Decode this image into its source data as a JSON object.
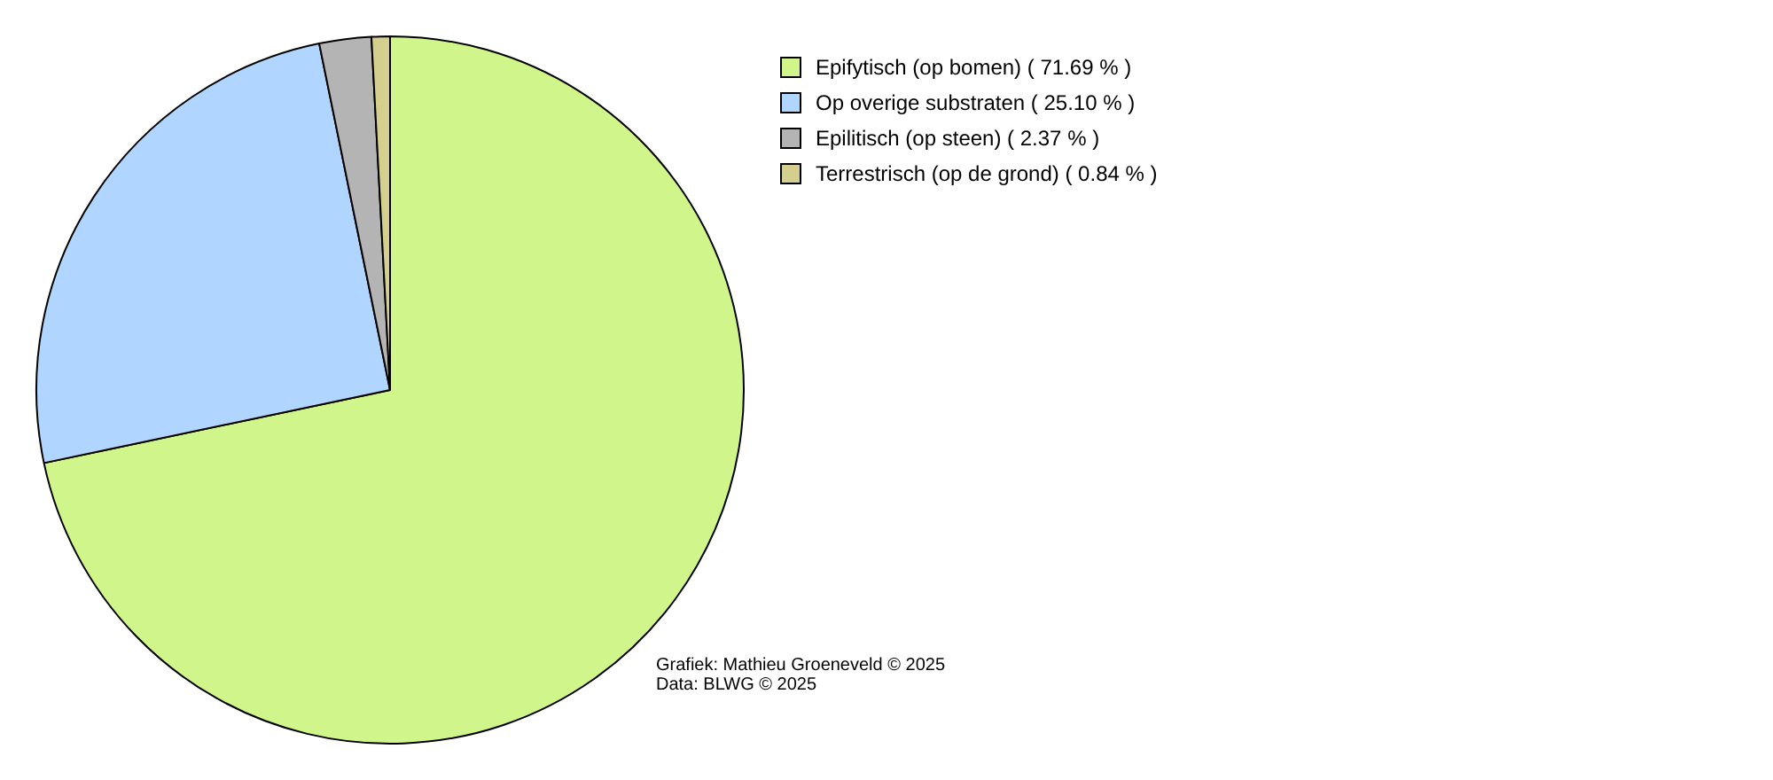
{
  "chart_data": {
    "type": "pie",
    "categories": [
      "Epifytisch (op bomen) ( 71.69 % )",
      "Op overige substraten ( 25.10 % )",
      "Epilitisch (op steen) ( 2.37 % )",
      "Terrestrisch (op de grond) ( 0.84 % )"
    ],
    "values": [
      71.69,
      25.1,
      2.37,
      0.84
    ],
    "colors": [
      "#d0f58a",
      "#b0d5ff",
      "#b4b4b4",
      "#d4cf8f"
    ],
    "legend": "top right",
    "annotations": [
      "Grafiek: Mathieu Groeneveld © 2025",
      "Data: BLWG © 2025"
    ]
  }
}
